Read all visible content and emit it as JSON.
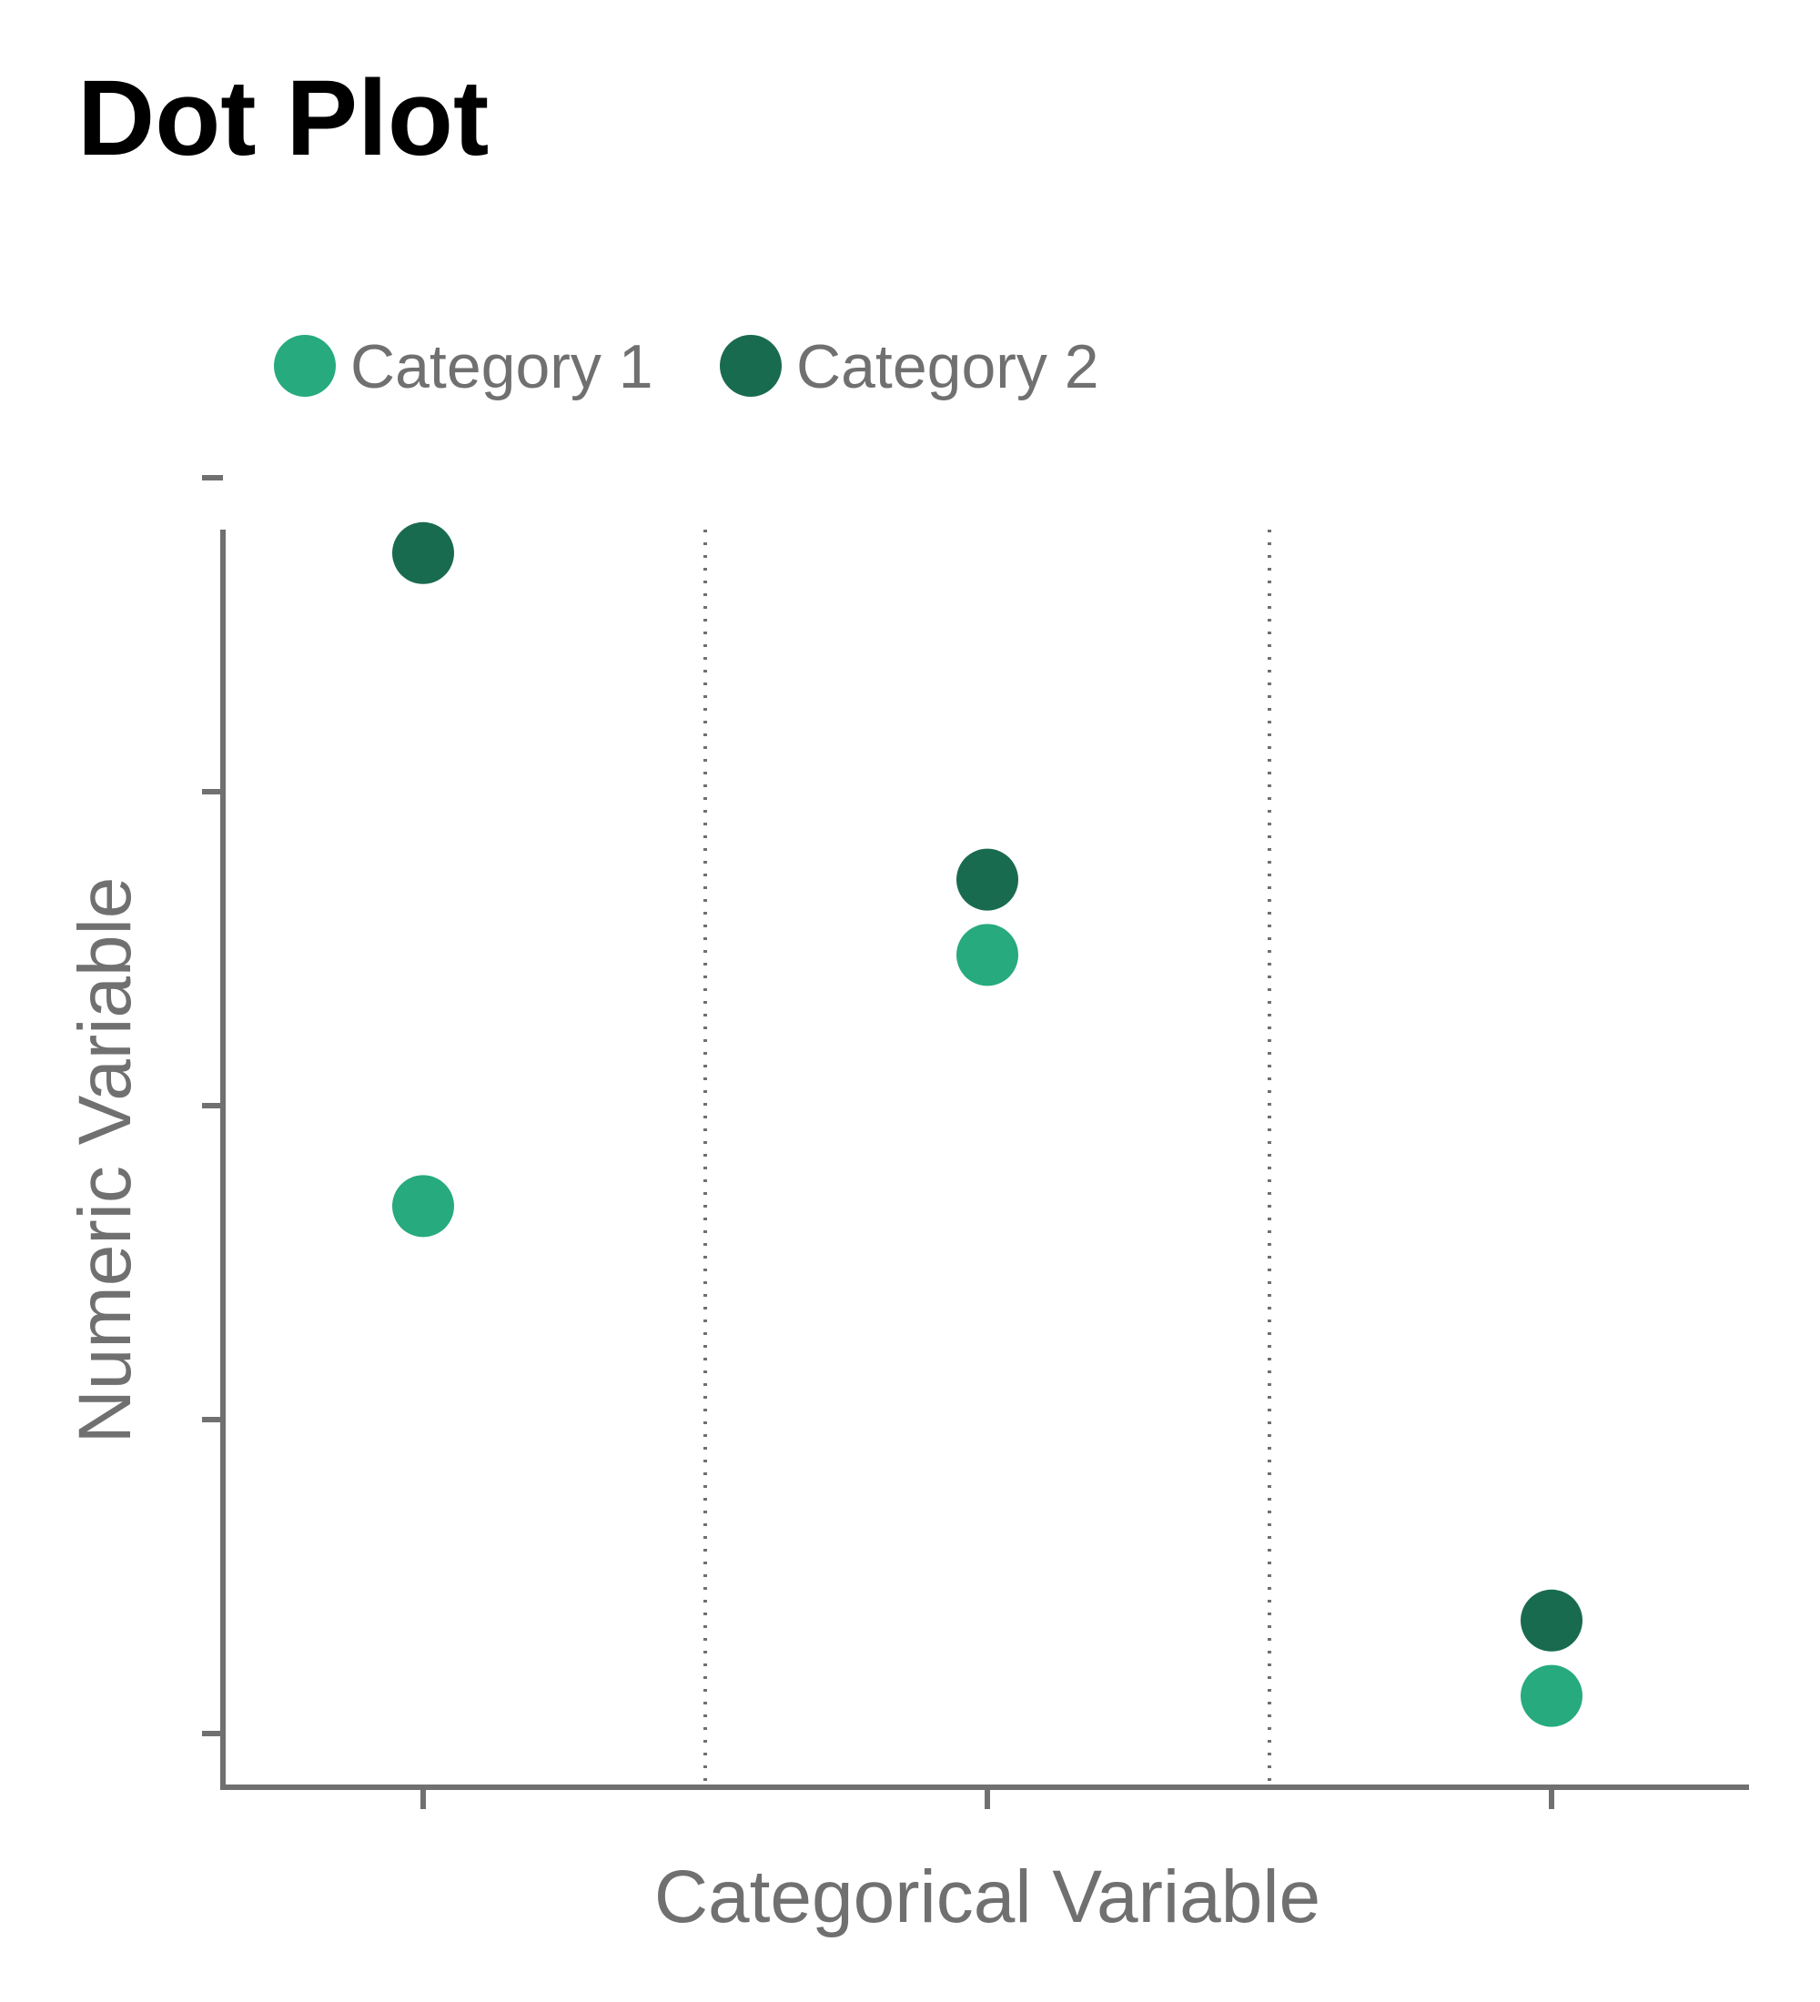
{
  "chart_data": {
    "type": "scatter",
    "title": "Dot Plot",
    "xlabel": "Categorical Variable",
    "ylabel": "Numeric Variable",
    "categories": [
      "",
      "",
      ""
    ],
    "ylim": [
      0,
      1
    ],
    "grid": false,
    "category_separators": true,
    "legend_position": "top-left",
    "series": [
      {
        "name": "Category 1",
        "color": "#27AA7E",
        "values": [
          0.42,
          0.62,
          0.03
        ]
      },
      {
        "name": "Category 2",
        "color": "#196B4F",
        "values": [
          0.94,
          0.68,
          0.09
        ]
      }
    ]
  },
  "colors": {
    "axis": "#707070",
    "separator": "#707070"
  }
}
